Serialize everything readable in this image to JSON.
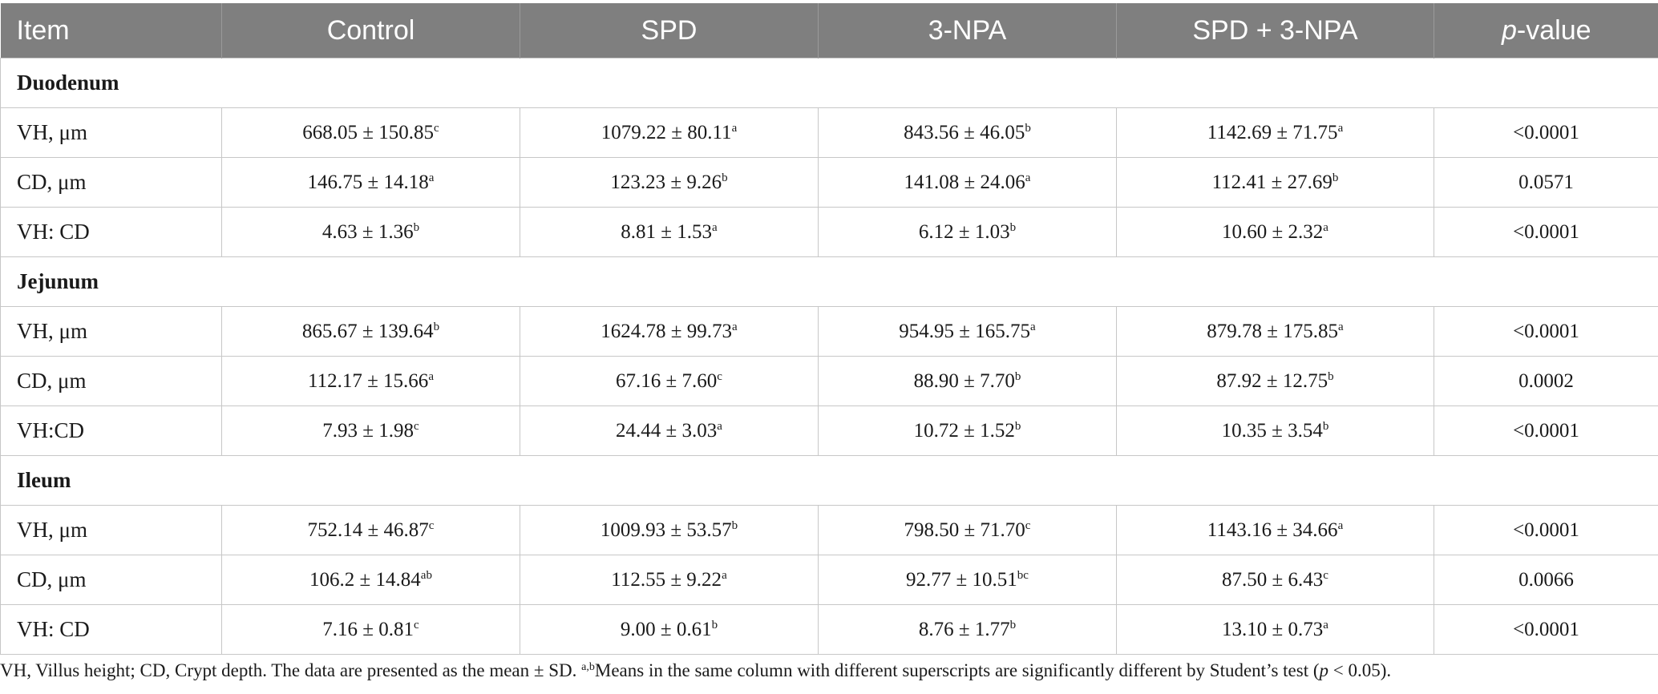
{
  "header": {
    "item": "Item",
    "control": "Control",
    "spd": "SPD",
    "npa": "3-NPA",
    "spd_npa": "SPD + 3-NPA",
    "p_italic": "p",
    "p_rest": "-value"
  },
  "sections": [
    {
      "name": "Duodenum",
      "rows": [
        {
          "item": "VH, μm",
          "cells": [
            [
              "668.05 ± 150.85",
              "c"
            ],
            [
              "1079.22 ± 80.11",
              "a"
            ],
            [
              "843.56 ± 46.05",
              "b"
            ],
            [
              "1142.69 ± 71.75",
              "a"
            ]
          ],
          "p": "<0.0001"
        },
        {
          "item": "CD, μm",
          "cells": [
            [
              "146.75 ± 14.18",
              "a"
            ],
            [
              "123.23 ± 9.26",
              "b"
            ],
            [
              "141.08 ± 24.06",
              "a"
            ],
            [
              "112.41 ± 27.69",
              "b"
            ]
          ],
          "p": "0.0571"
        },
        {
          "item": "VH: CD",
          "cells": [
            [
              "4.63 ± 1.36",
              "b"
            ],
            [
              "8.81 ± 1.53",
              "a"
            ],
            [
              "6.12 ± 1.03",
              "b"
            ],
            [
              "10.60 ± 2.32",
              "a"
            ]
          ],
          "p": "<0.0001"
        }
      ]
    },
    {
      "name": "Jejunum",
      "rows": [
        {
          "item": "VH, μm",
          "cells": [
            [
              "865.67 ± 139.64",
              "b"
            ],
            [
              "1624.78 ± 99.73",
              "a"
            ],
            [
              "954.95 ± 165.75",
              "a"
            ],
            [
              "879.78 ± 175.85",
              "a"
            ]
          ],
          "p": "<0.0001"
        },
        {
          "item": "CD, μm",
          "cells": [
            [
              "112.17 ± 15.66",
              "a"
            ],
            [
              "67.16 ± 7.60",
              "c"
            ],
            [
              "88.90 ± 7.70",
              "b"
            ],
            [
              "87.92 ± 12.75",
              "b"
            ]
          ],
          "p": "0.0002"
        },
        {
          "item": "VH:CD",
          "cells": [
            [
              "7.93 ± 1.98",
              "c"
            ],
            [
              "24.44 ± 3.03",
              "a"
            ],
            [
              "10.72 ± 1.52",
              "b"
            ],
            [
              "10.35 ± 3.54",
              "b"
            ]
          ],
          "p": "<0.0001"
        }
      ]
    },
    {
      "name": "Ileum",
      "rows": [
        {
          "item": "VH, μm",
          "cells": [
            [
              "752.14 ± 46.87",
              "c"
            ],
            [
              "1009.93 ± 53.57",
              "b"
            ],
            [
              "798.50 ± 71.70",
              "c"
            ],
            [
              "1143.16 ± 34.66",
              "a"
            ]
          ],
          "p": "<0.0001"
        },
        {
          "item": "CD, μm",
          "cells": [
            [
              "106.2 ± 14.84",
              "ab"
            ],
            [
              "112.55 ± 9.22",
              "a"
            ],
            [
              "92.77 ± 10.51",
              "bc"
            ],
            [
              "87.50 ± 6.43",
              "c"
            ]
          ],
          "p": "0.0066"
        },
        {
          "item": "VH: CD",
          "cells": [
            [
              "7.16 ± 0.81",
              "c"
            ],
            [
              "9.00 ± 0.61",
              "b"
            ],
            [
              "8.76 ± 1.77",
              "b"
            ],
            [
              "13.10 ± 0.73",
              "a"
            ]
          ],
          "p": "<0.0001"
        }
      ]
    }
  ],
  "footnote": {
    "part1": "VH, Villus height; CD, Crypt depth. The data are presented as the mean ± SD. ",
    "sup": "a,b",
    "part2": "Means in the same column with different superscripts are significantly different by Student’s test (",
    "p_italic": "p",
    "part3": " < 0.05)."
  },
  "colors": {
    "header_bg": "#7f7f7f",
    "header_text": "#ffffff",
    "border": "#c7c7c7"
  }
}
